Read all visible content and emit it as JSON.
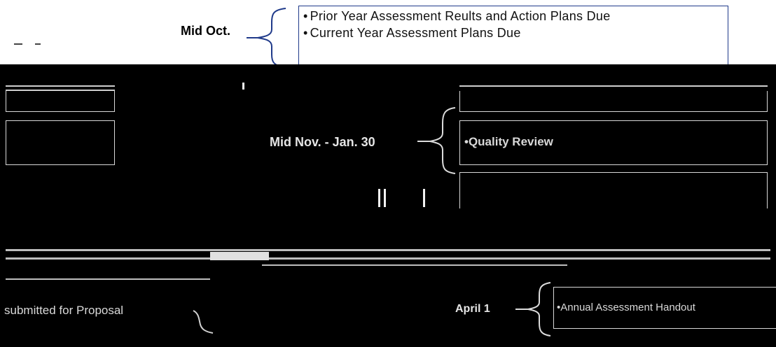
{
  "timeline": {
    "mid_oct": {
      "date": "Mid Oct.",
      "tasks": [
        "Prior Year Assessment Reults and Action Plans Due",
        "Current Year Assessment Plans Due"
      ]
    },
    "mid_nov_jan": {
      "date": "Mid Nov. - Jan. 30",
      "task": "Quality Review"
    },
    "april": {
      "date": "April 1",
      "task": "Annual Assessment Handout"
    },
    "fragment_left": "submitted for Proposal"
  },
  "colors": {
    "box_border": "#1f3a8a",
    "background": "#000000",
    "paper": "#ffffff"
  }
}
